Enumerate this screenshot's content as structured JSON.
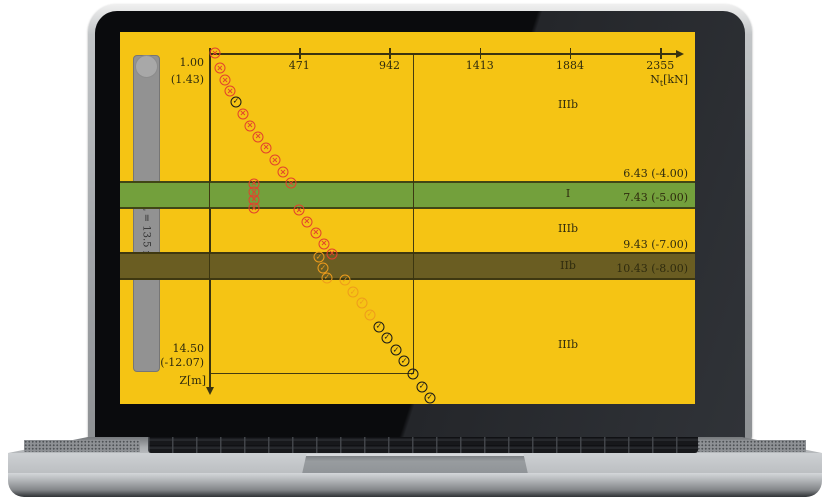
{
  "colors": {
    "screen_bg": "#f5c414",
    "band_green": "#73a03c",
    "band_dark": "#6a5d22",
    "ink": "#2f2b0e",
    "fail": "#e2412e",
    "warn": "#ee9c1c",
    "pass": "#181818"
  },
  "chart_data": {
    "type": "scatter",
    "x_axis": {
      "label_symbol": "N",
      "label_sub": "t",
      "label_unit": "[kN]",
      "ticks": [
        471,
        942,
        1413,
        1884,
        2355
      ]
    },
    "y_axis": {
      "label": "Z[m]",
      "direction": "down",
      "top1": "1.00",
      "top2": "(1.43)",
      "bot1": "14.50",
      "bot2": "(-12.07)"
    },
    "pile": {
      "label": "L = 13.5 m"
    },
    "envelope": {
      "n_max": 1060,
      "z_bottom": 14.35
    },
    "soil_layers": [
      {
        "label": "IIIb",
        "z_label": 3.2,
        "z_from": null,
        "z_to": null,
        "band": null
      },
      {
        "label": "I",
        "z_label": 6.95,
        "z_from": 6.43,
        "z_to": 7.43,
        "band": "#73a03c"
      },
      {
        "label": "IIIb",
        "z_label": 8.4,
        "z_from": null,
        "z_to": null,
        "band": null
      },
      {
        "label": "IIb",
        "z_label": 9.95,
        "z_from": 9.43,
        "z_to": 10.43,
        "band": "#6a5d22"
      },
      {
        "label": "IIIb",
        "z_label": 13.25,
        "z_from": null,
        "z_to": null,
        "band": null
      }
    ],
    "boundary_labels": [
      {
        "text": "6.43 (-4.00)",
        "z": 6.43
      },
      {
        "text": "7.43 (-5.00)",
        "z": 7.43
      },
      {
        "text": "9.43 (-7.00)",
        "z": 9.43
      },
      {
        "text": "10.43 (-8.00)",
        "z": 10.43
      }
    ],
    "series": [
      {
        "name": "check-failed",
        "marker": "cross",
        "color": "#e2412e",
        "points": [
          [
            31,
            1.0
          ],
          [
            57,
            1.63
          ],
          [
            84,
            2.13
          ],
          [
            110,
            2.59
          ],
          [
            177,
            3.55
          ],
          [
            214,
            4.05
          ],
          [
            256,
            4.51
          ],
          [
            298,
            4.97
          ],
          [
            344,
            5.48
          ],
          [
            386,
            5.98
          ],
          [
            428,
            6.44
          ],
          [
            470,
            7.57
          ],
          [
            511,
            8.07
          ],
          [
            558,
            8.53
          ],
          [
            600,
            8.99
          ],
          [
            642,
            9.41
          ]
        ]
      },
      {
        "name": "check-failed-cluster",
        "marker": "cross",
        "color": "#e2412e",
        "points": [
          [
            235,
            6.48
          ],
          [
            235,
            6.82
          ],
          [
            235,
            7.15
          ],
          [
            235,
            7.49
          ]
        ]
      },
      {
        "name": "check-warning",
        "marker": "check",
        "color": "#ee9c1c",
        "points": [
          [
            574,
            9.54
          ],
          [
            595,
            10.0
          ],
          [
            616,
            10.41
          ],
          [
            710,
            10.5
          ],
          [
            752,
            11.0
          ],
          [
            799,
            11.46
          ],
          [
            840,
            11.96
          ]
        ]
      },
      {
        "name": "check-passed",
        "marker": "check",
        "color": "#181818",
        "points": [
          [
            141,
            3.05
          ],
          [
            887,
            12.46
          ],
          [
            929,
            12.92
          ],
          [
            976,
            13.43
          ],
          [
            1018,
            13.89
          ],
          [
            1065,
            14.43
          ],
          [
            1112,
            14.97
          ],
          [
            1153,
            15.43
          ]
        ]
      }
    ]
  }
}
